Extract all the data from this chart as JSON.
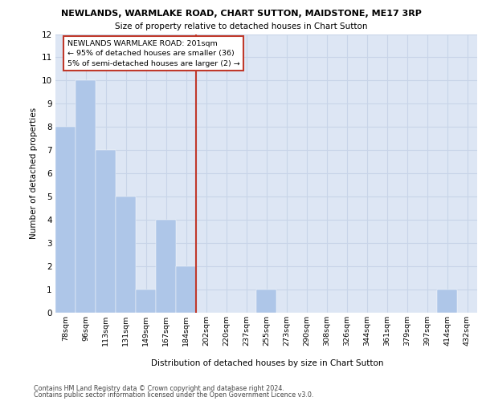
{
  "title": "NEWLANDS, WARMLAKE ROAD, CHART SUTTON, MAIDSTONE, ME17 3RP",
  "subtitle": "Size of property relative to detached houses in Chart Sutton",
  "xlabel": "Distribution of detached houses by size in Chart Sutton",
  "ylabel": "Number of detached properties",
  "footnote1": "Contains HM Land Registry data © Crown copyright and database right 2024.",
  "footnote2": "Contains public sector information licensed under the Open Government Licence v3.0.",
  "categories": [
    "78sqm",
    "96sqm",
    "113sqm",
    "131sqm",
    "149sqm",
    "167sqm",
    "184sqm",
    "202sqm",
    "220sqm",
    "237sqm",
    "255sqm",
    "273sqm",
    "290sqm",
    "308sqm",
    "326sqm",
    "344sqm",
    "361sqm",
    "379sqm",
    "397sqm",
    "414sqm",
    "432sqm"
  ],
  "values": [
    8,
    10,
    7,
    5,
    1,
    4,
    2,
    0,
    0,
    0,
    1,
    0,
    0,
    0,
    0,
    0,
    0,
    0,
    0,
    1,
    0
  ],
  "bar_color": "#aec6e8",
  "grid_color": "#c8d4e8",
  "bg_color": "#dde6f4",
  "vline_color": "#c0392b",
  "annotation_line1": "NEWLANDS WARMLAKE ROAD: 201sqm",
  "annotation_line2": "← 95% of detached houses are smaller (36)",
  "annotation_line3": "5% of semi-detached houses are larger (2) →",
  "annotation_box_color": "#c0392b",
  "ylim": [
    0,
    12
  ],
  "yticks": [
    0,
    1,
    2,
    3,
    4,
    5,
    6,
    7,
    8,
    9,
    10,
    11,
    12
  ]
}
